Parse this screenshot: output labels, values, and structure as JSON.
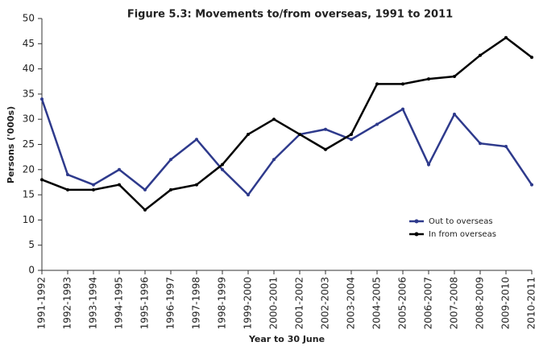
{
  "chart_data": {
    "type": "line",
    "title": "Figure 5.3: Movements to/from overseas, 1991 to 2011",
    "x_label": "Year to 30 June",
    "y_label": "Persons ('000s)",
    "categories": [
      "1991-1992",
      "1992-1993",
      "1993-1994",
      "1994-1995",
      "1995-1996",
      "1996-1997",
      "1997-1998",
      "1998-1999",
      "1999-2000",
      "2000-2001",
      "2001-2002",
      "2002-2003",
      "2003-2004",
      "2004-2005",
      "2005-2006",
      "2006-2007",
      "2007-2008",
      "2008-2009",
      "2009-2010",
      "2010-2011"
    ],
    "series": [
      {
        "name": "Out to overseas",
        "color": "#2e3a8c",
        "values": [
          34,
          19,
          17,
          20,
          16,
          22,
          26,
          20,
          15,
          22,
          27,
          28,
          26,
          29,
          32,
          21,
          31,
          25.2,
          24.6,
          17
        ]
      },
      {
        "name": "In from overseas",
        "color": "#000000",
        "values": [
          18,
          16,
          16,
          17,
          12,
          16,
          17,
          21,
          27,
          30,
          27,
          24,
          27,
          37,
          37,
          38,
          38.5,
          42.7,
          46.2,
          42.3
        ]
      }
    ],
    "ylim": [
      0,
      50
    ],
    "yticks": [
      0,
      5,
      10,
      15,
      20,
      25,
      30,
      35,
      40,
      45,
      50
    ],
    "grid": false,
    "legend": "lower right"
  }
}
